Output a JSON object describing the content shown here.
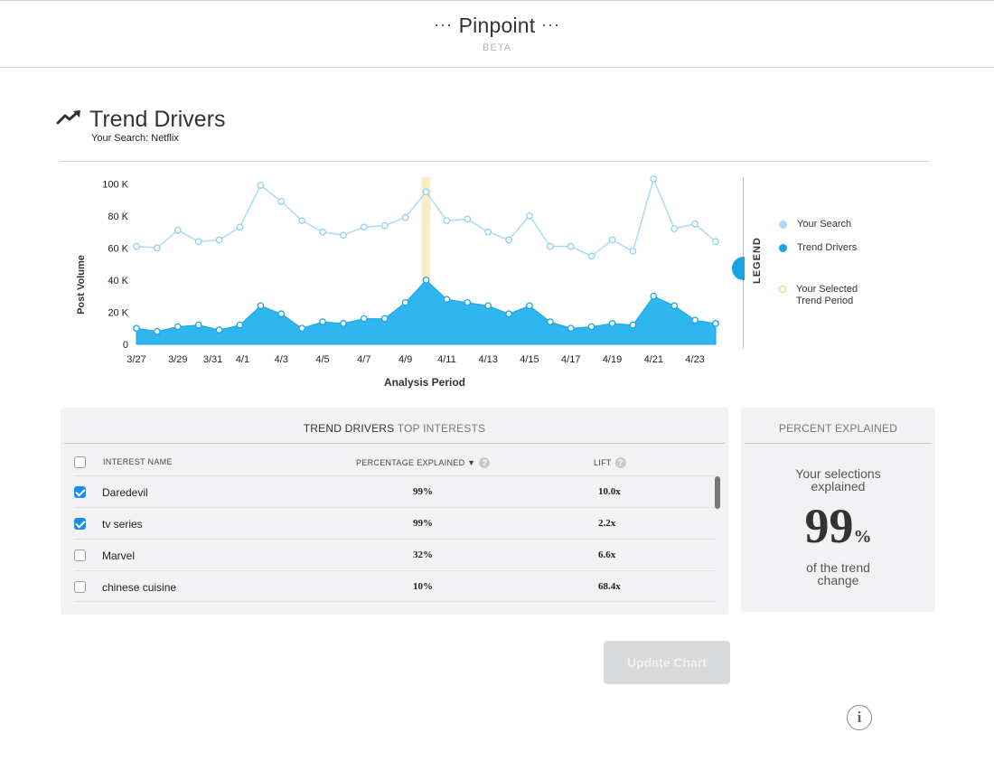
{
  "header": {
    "app_name": "Pinpoint",
    "badge": "BETA"
  },
  "page": {
    "title": "Trend Drivers",
    "search_label": "Your Search: Netflix"
  },
  "legend": {
    "title": "LEGEND",
    "items": [
      {
        "label": "Your Search",
        "color": "#a8dcf5"
      },
      {
        "label": "Trend Drivers",
        "color": "#1aa3e4"
      },
      {
        "label": "Your Selected Trend Period",
        "color": "#f5c542"
      }
    ]
  },
  "chart_data": {
    "type": "area",
    "xlabel": "Analysis Period",
    "ylabel": "Post Volume",
    "ylim": [
      0,
      100000
    ],
    "y_ticks": [
      "0",
      "20 K",
      "40 K",
      "60 K",
      "80 K",
      "100 K"
    ],
    "x_tick_labels": [
      "3/27",
      "3/29",
      "3/31",
      "4/1",
      "4/3",
      "4/5",
      "4/7",
      "4/9",
      "4/11",
      "4/13",
      "4/15",
      "4/17",
      "4/19",
      "4/21",
      "4/23"
    ],
    "x": [
      "3/27",
      "3/28",
      "3/29",
      "3/30",
      "3/31",
      "4/1",
      "4/2",
      "4/3",
      "4/4",
      "4/5",
      "4/6",
      "4/7",
      "4/8",
      "4/9",
      "4/10",
      "4/11",
      "4/12",
      "4/13",
      "4/14",
      "4/15",
      "4/16",
      "4/17",
      "4/18",
      "4/19",
      "4/20",
      "4/21",
      "4/22",
      "4/23",
      "4/24"
    ],
    "highlight_x": "4/10",
    "series": [
      {
        "name": "Your Search",
        "values": [
          61000,
          60000,
          71000,
          64000,
          65000,
          73000,
          99000,
          89000,
          77000,
          70000,
          68000,
          73000,
          74000,
          79000,
          95000,
          77000,
          78000,
          70000,
          65000,
          80000,
          61000,
          61000,
          55000,
          65000,
          58000,
          103000,
          72000,
          75000,
          64000
        ]
      },
      {
        "name": "Trend Drivers",
        "values": [
          10000,
          8000,
          11000,
          12000,
          9000,
          12000,
          24000,
          19000,
          10000,
          14000,
          13000,
          16000,
          16000,
          26000,
          40000,
          28000,
          26000,
          24000,
          19000,
          24000,
          14000,
          10000,
          11000,
          13000,
          12000,
          30000,
          24000,
          15000,
          13000
        ]
      }
    ]
  },
  "table": {
    "title_strong": "TREND DRIVERS",
    "title_rest": " TOP INTERESTS",
    "headers": {
      "name": "INTEREST NAME",
      "pct": "PERCENTAGE EXPLAINED ▼",
      "lift": "LIFT"
    },
    "rows": [
      {
        "name": "Daredevil",
        "pct": "99%",
        "lift": "10.0x",
        "checked": true
      },
      {
        "name": "tv series",
        "pct": "99%",
        "lift": "2.2x",
        "checked": true
      },
      {
        "name": "Marvel",
        "pct": "32%",
        "lift": "6.6x",
        "checked": false
      },
      {
        "name": "chinese cuisine",
        "pct": "10%",
        "lift": "68.4x",
        "checked": false
      }
    ]
  },
  "percent_panel": {
    "title": "PERCENT EXPLAINED",
    "line1": "Your selections",
    "line2": "explained",
    "value": "99",
    "unit": "%",
    "line3": "of the trend",
    "line4": "change"
  },
  "actions": {
    "update_label": "Update Chart",
    "info_label": "i"
  }
}
